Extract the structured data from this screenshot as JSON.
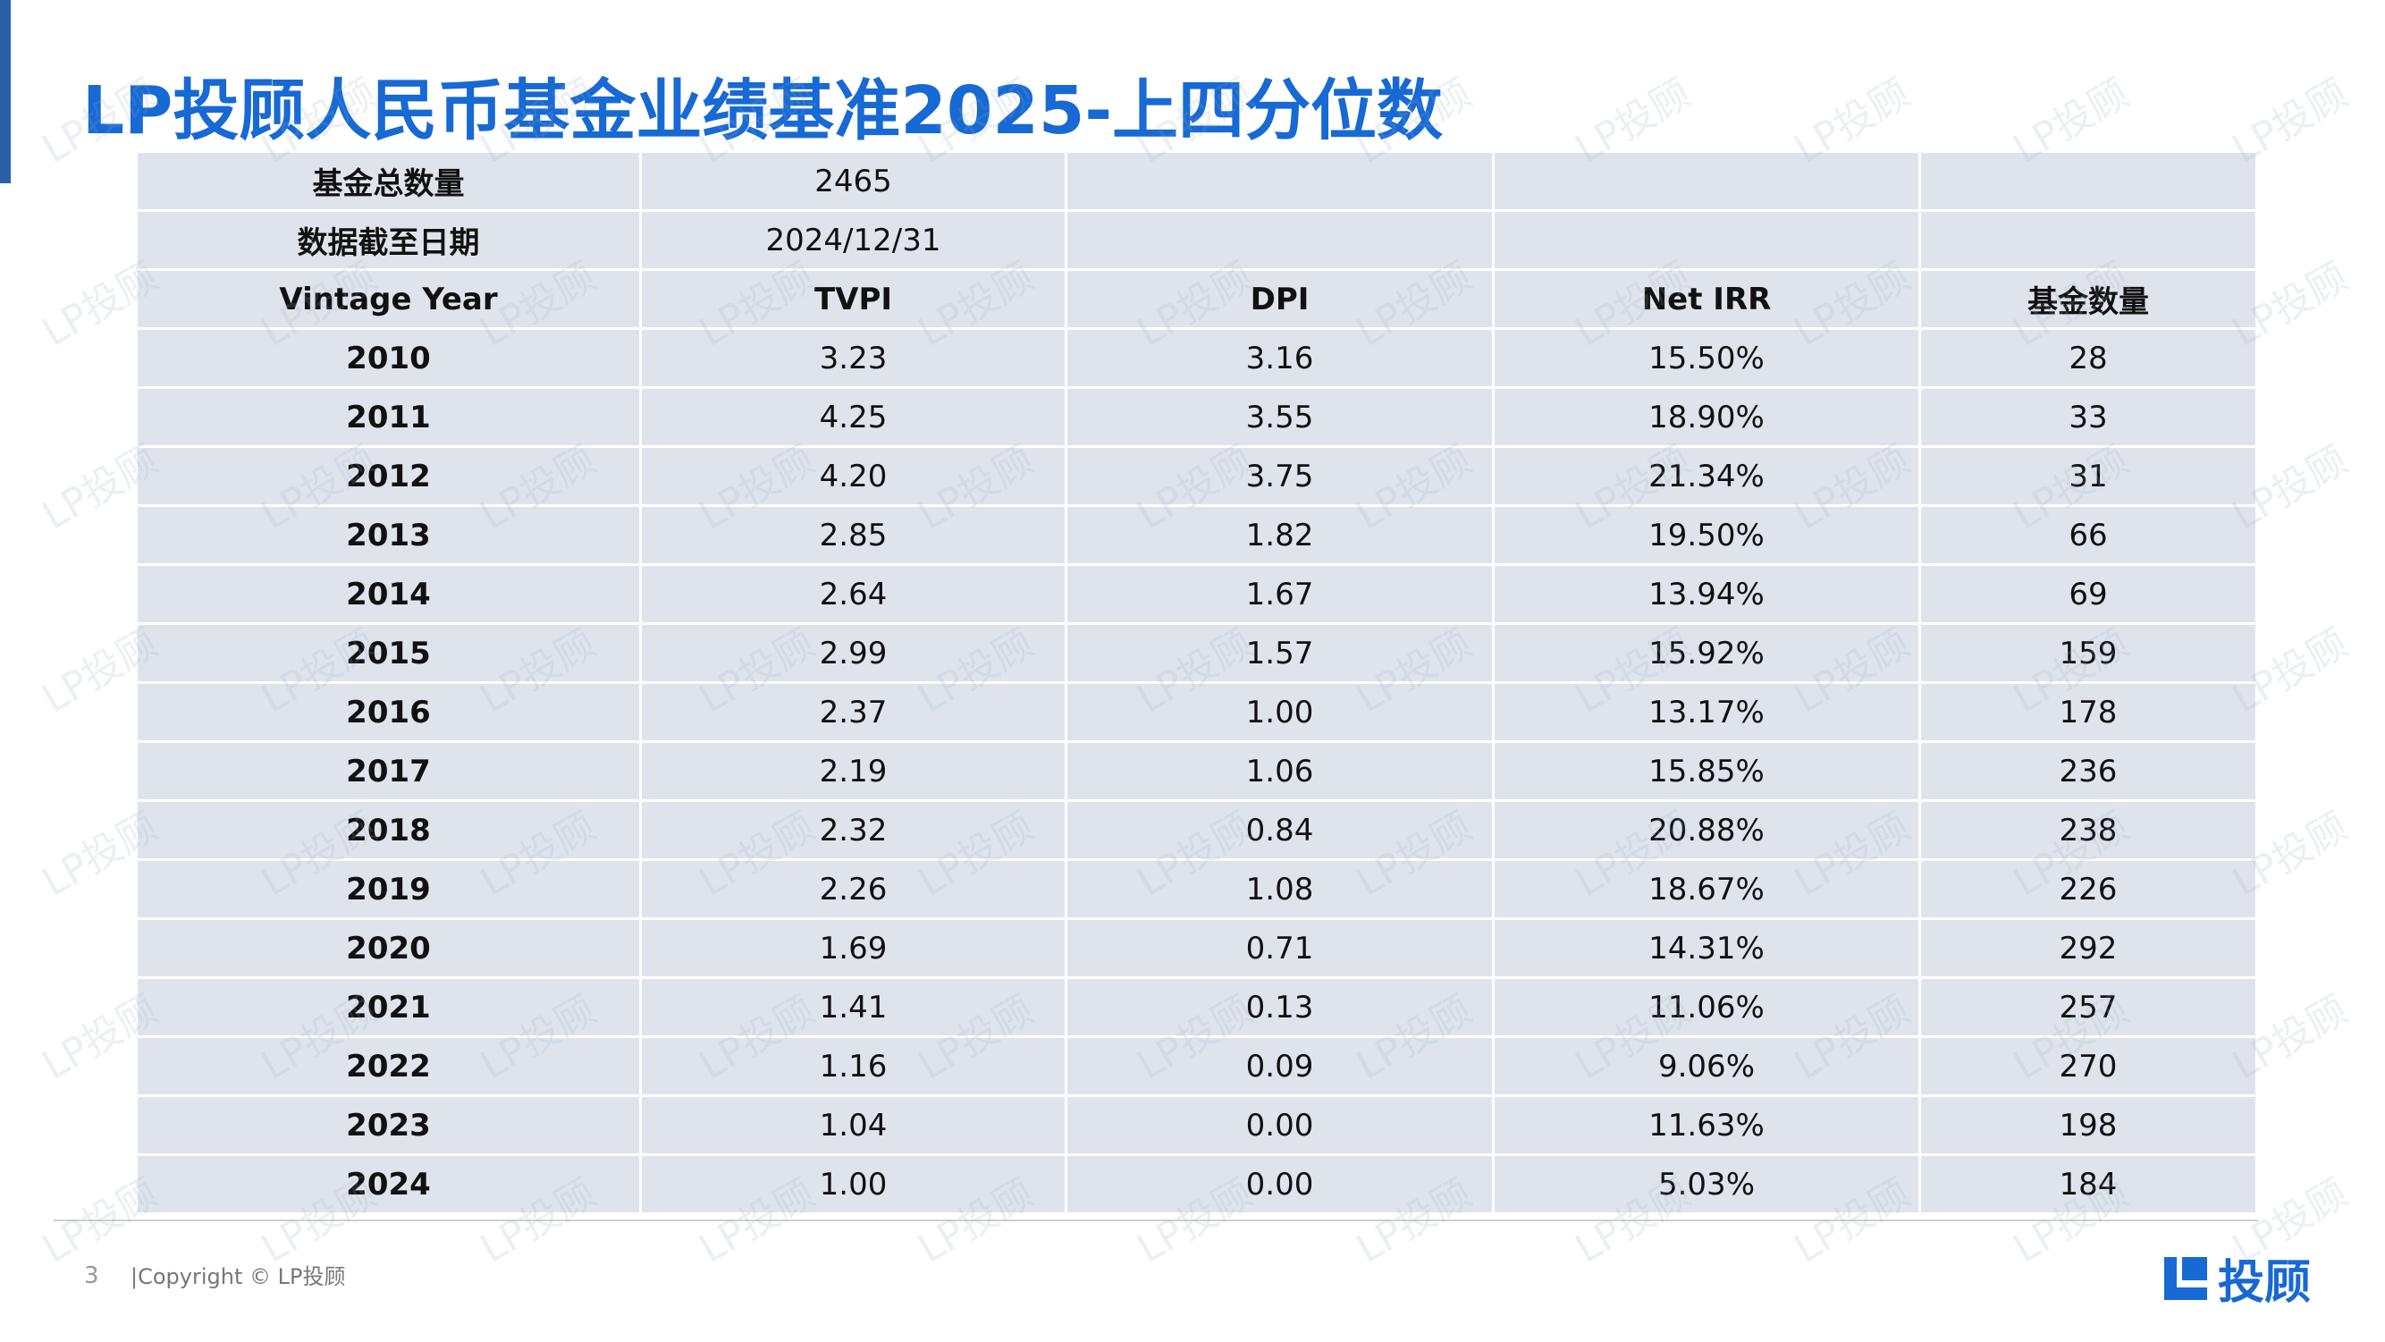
{
  "title": "LP投顾人民币基金业绩基准2025-上四分位数",
  "summary": [
    {
      "label": "基金总数量",
      "value": "2465"
    },
    {
      "label": "数据截至日期",
      "value": "2024/12/31"
    }
  ],
  "table": {
    "header": [
      "Vintage Year",
      "TVPI",
      "DPI",
      "Net IRR",
      "基金数量"
    ],
    "rows": [
      [
        "2010",
        "3.23",
        "3.16",
        "15.50%",
        "28"
      ],
      [
        "2011",
        "4.25",
        "3.55",
        "18.90%",
        "33"
      ],
      [
        "2012",
        "4.20",
        "3.75",
        "21.34%",
        "31"
      ],
      [
        "2013",
        "2.85",
        "1.82",
        "19.50%",
        "66"
      ],
      [
        "2014",
        "2.64",
        "1.67",
        "13.94%",
        "69"
      ],
      [
        "2015",
        "2.99",
        "1.57",
        "15.92%",
        "159"
      ],
      [
        "2016",
        "2.37",
        "1.00",
        "13.17%",
        "178"
      ],
      [
        "2017",
        "2.19",
        "1.06",
        "15.85%",
        "236"
      ],
      [
        "2018",
        "2.32",
        "0.84",
        "20.88%",
        "238"
      ],
      [
        "2019",
        "2.26",
        "1.08",
        "18.67%",
        "226"
      ],
      [
        "2020",
        "1.69",
        "0.71",
        "14.31%",
        "292"
      ],
      [
        "2021",
        "1.41",
        "0.13",
        "11.06%",
        "257"
      ],
      [
        "2022",
        "1.16",
        "0.09",
        "9.06%",
        "270"
      ],
      [
        "2023",
        "1.04",
        "0.00",
        "11.63%",
        "198"
      ],
      [
        "2024",
        "1.00",
        "0.00",
        "5.03%",
        "184"
      ]
    ]
  },
  "watermark": "LP投顾",
  "footer": {
    "page": "3",
    "copyright": "|Copyright © LP投顾",
    "logo": "投顾"
  }
}
